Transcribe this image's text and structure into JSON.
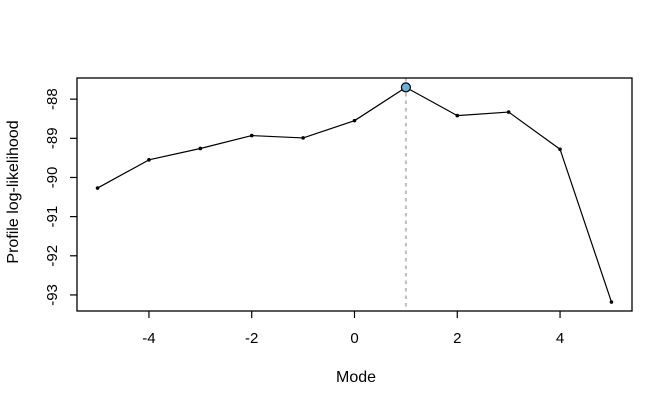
{
  "window": {
    "background": "#ffffff"
  },
  "chart_data": {
    "type": "line",
    "title": "",
    "xlabel": "Mode",
    "ylabel": "Profile log-likelihood",
    "x": [
      -5,
      -4,
      -3,
      -2,
      -1,
      0,
      1,
      2,
      3,
      4,
      5
    ],
    "y": [
      -90.27,
      -89.55,
      -89.26,
      -88.93,
      -88.99,
      -88.55,
      -87.7,
      -88.42,
      -88.33,
      -89.28,
      -93.18
    ],
    "x_ticks": [
      -4,
      -2,
      0,
      2,
      4
    ],
    "y_ticks": [
      -88,
      -89,
      -90,
      -91,
      -92,
      -93
    ],
    "xlim": [
      -5.4,
      5.4
    ],
    "ylim": [
      -93.41,
      -87.46
    ],
    "grid": false,
    "legend": null,
    "line_color": "#000000",
    "point_color": "#000000",
    "box_color": "#000000",
    "highlight_point": {
      "x": 1,
      "y": -87.7,
      "fill": "#6BAED6",
      "stroke": "#000000"
    },
    "reference_vline": {
      "x": 1,
      "style": "dotted",
      "color": "#BDBDBD"
    }
  }
}
